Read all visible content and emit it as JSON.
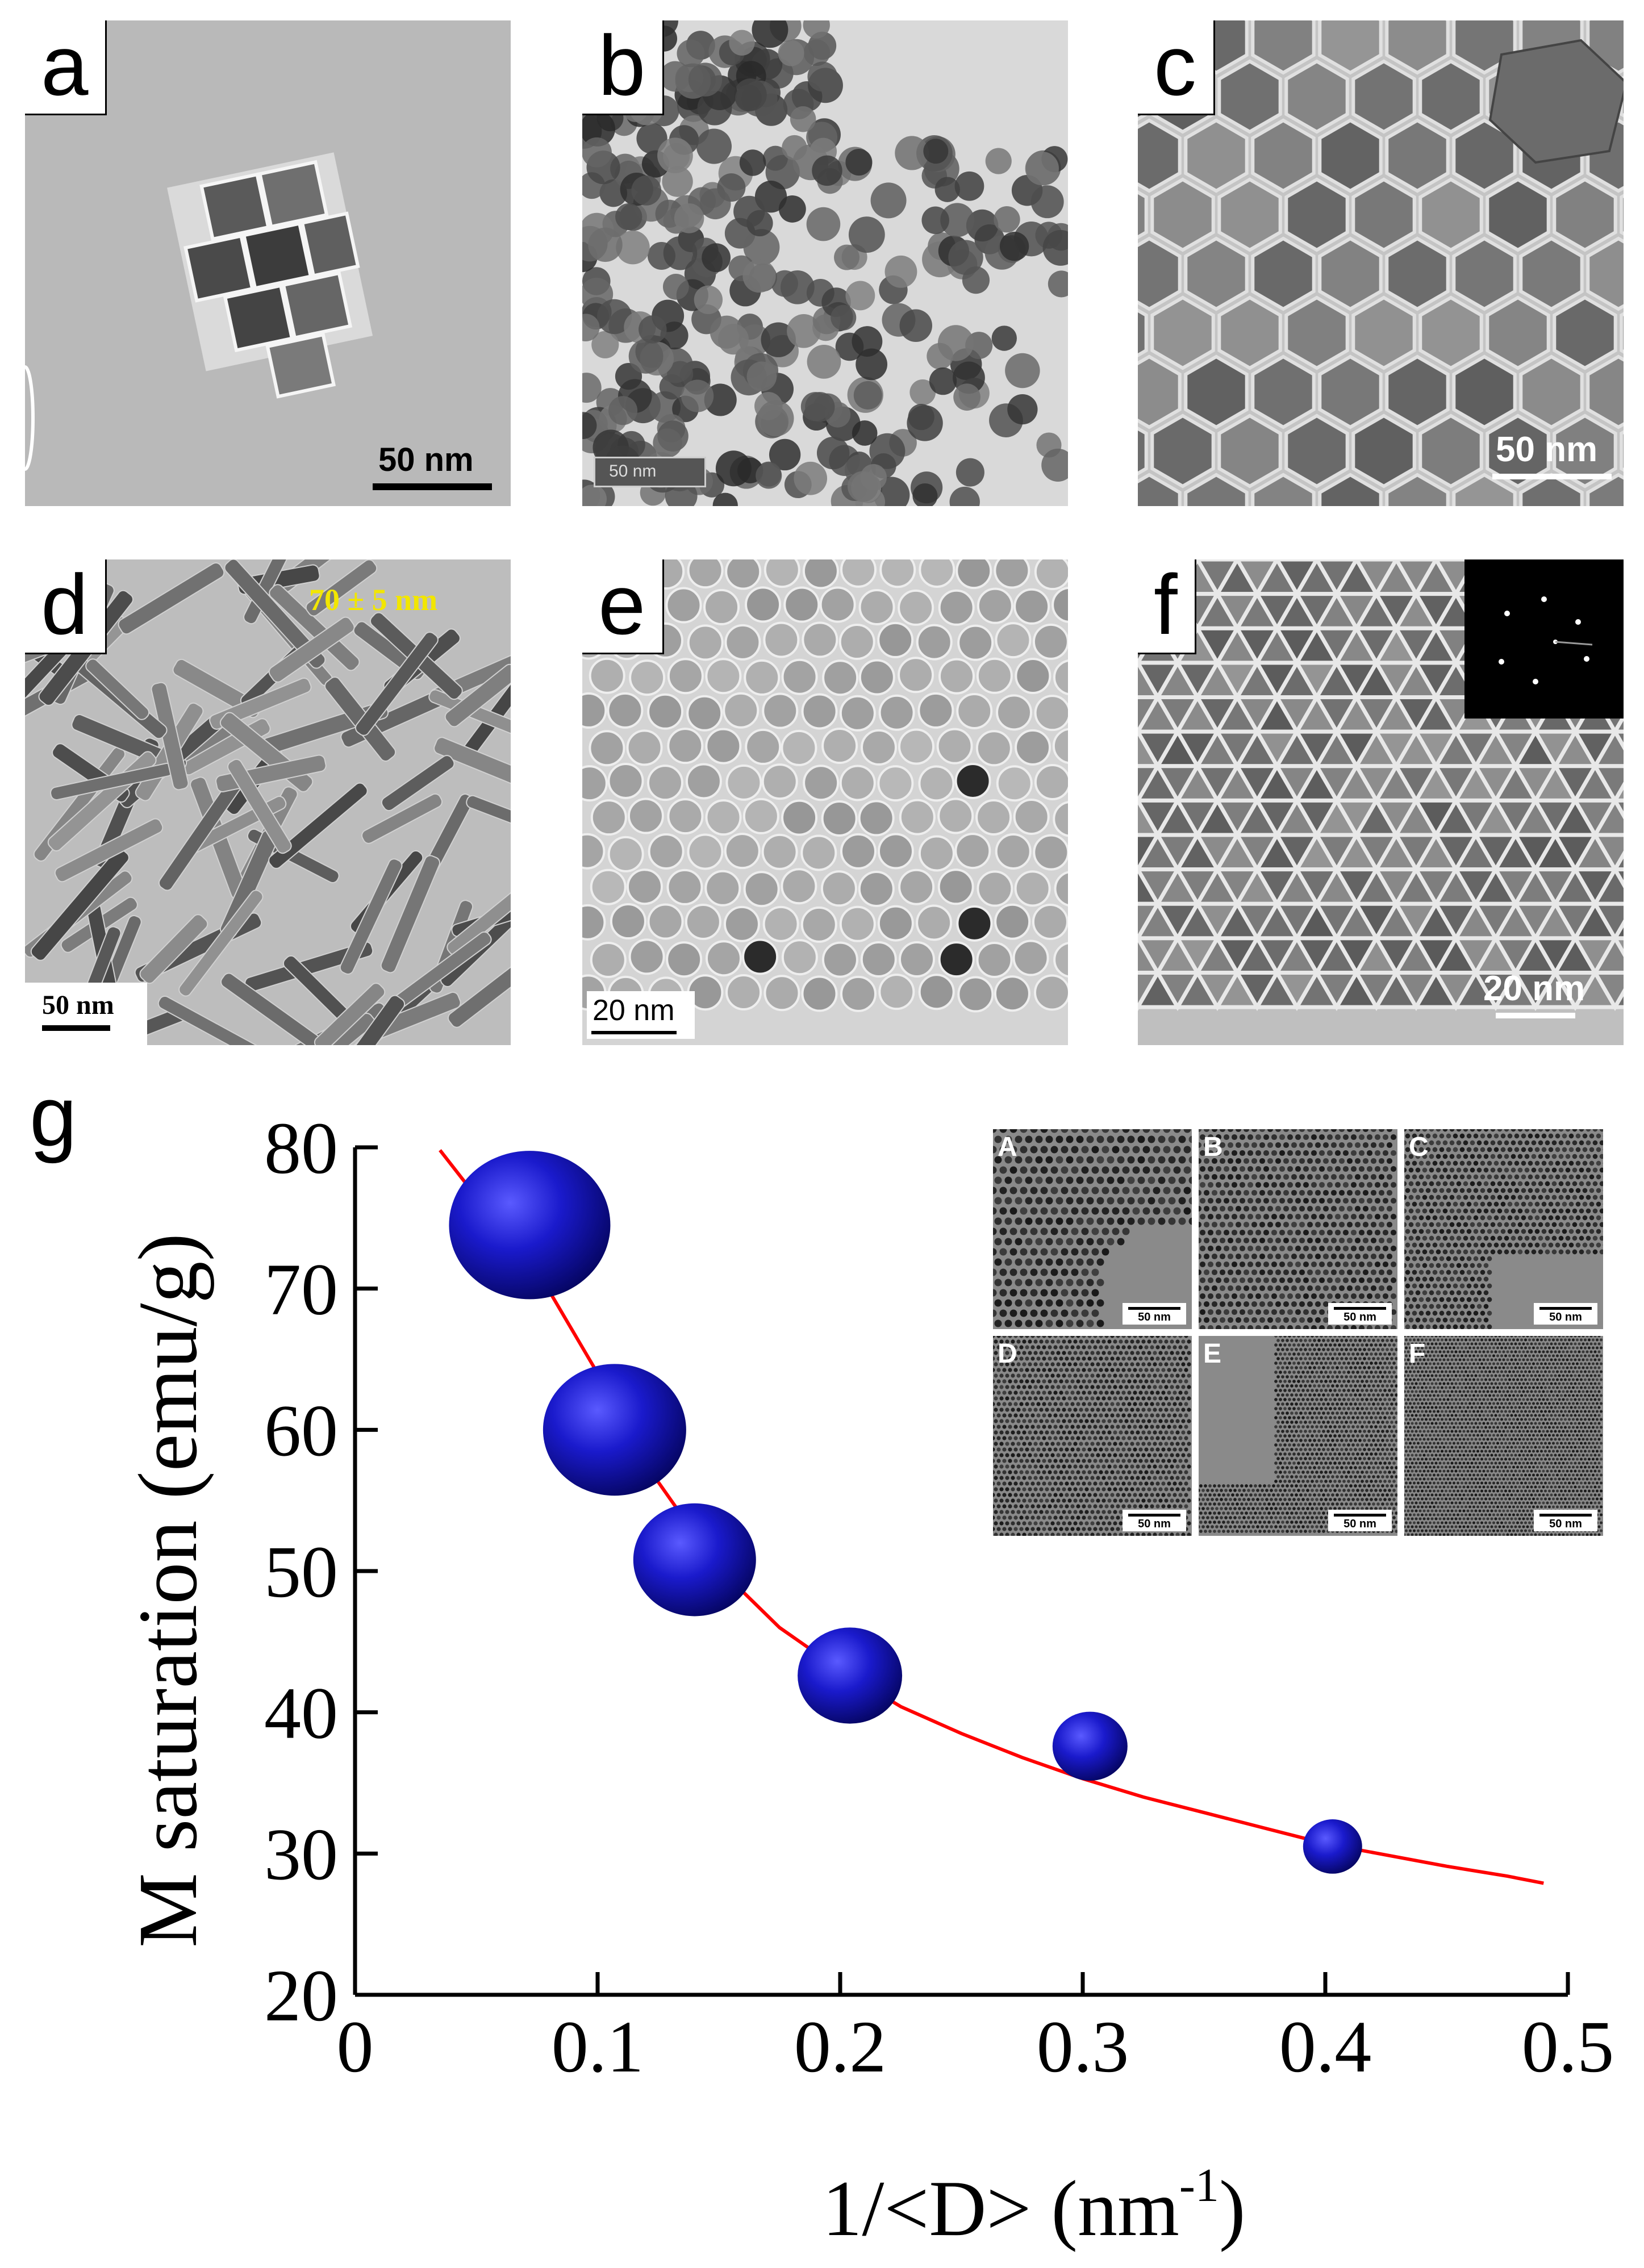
{
  "figure": {
    "panels": [
      {
        "id": "a",
        "letter": "a",
        "scale_bar": "50 nm",
        "description_icon": "tem-nanocubes"
      },
      {
        "id": "b",
        "letter": "b",
        "scale_bar": "50 nm",
        "description_icon": "tem-nanoflowers"
      },
      {
        "id": "c",
        "letter": "c",
        "scale_bar": "50 nm",
        "description_icon": "tem-hexagonal-plates"
      },
      {
        "id": "d",
        "letter": "d",
        "scale_bar": "50 nm",
        "annotation": "70 ± 5 nm",
        "description_icon": "tem-nanorods"
      },
      {
        "id": "e",
        "letter": "e",
        "scale_bar": "20 nm",
        "description_icon": "tem-nanospheres"
      },
      {
        "id": "f",
        "letter": "f",
        "scale_bar": "20 nm",
        "description_icon": "tem-nanotriangles"
      }
    ],
    "panel_g_letter": "g",
    "inset": {
      "labels": [
        "A",
        "B",
        "C",
        "D",
        "E",
        "F"
      ],
      "scale_bar": "50 nm"
    },
    "colors": {
      "marker": "#1a1acc",
      "fit_line": "#ff0000",
      "annotation_yellow": "#f2e600"
    }
  },
  "chart_data": {
    "type": "scatter",
    "xlabel": "1/<D> (nm",
    "xlabel_sup": "-1",
    "xlabel_close": ")",
    "ylabel": "M saturation (emu/g)",
    "xlim": [
      0,
      0.5
    ],
    "ylim": [
      20,
      80
    ],
    "xticks": [
      "0",
      "0.1",
      "0.2",
      "0.3",
      "0.4",
      "0.5"
    ],
    "yticks": [
      "20",
      "30",
      "40",
      "50",
      "60",
      "70",
      "80"
    ],
    "series": [
      {
        "marker": "sphere",
        "x": [
          0.072,
          0.107,
          0.14,
          0.204,
          0.303,
          0.403
        ],
        "y": [
          74.5,
          60,
          50.8,
          42.6,
          37.6,
          30.5
        ],
        "marker_size_rank": [
          6,
          5,
          4,
          3,
          2,
          1
        ]
      }
    ],
    "fit": {
      "type": "curve",
      "x": [
        0.035,
        0.05,
        0.075,
        0.1,
        0.125,
        0.15,
        0.175,
        0.2,
        0.225,
        0.25,
        0.275,
        0.3,
        0.325,
        0.35,
        0.375,
        0.4,
        0.425,
        0.45,
        0.475,
        0.49
      ],
      "y": [
        79.8,
        76.5,
        71.3,
        64.0,
        56.3,
        50.2,
        46.0,
        43.0,
        40.4,
        38.5,
        36.8,
        35.3,
        34.0,
        32.9,
        31.8,
        30.7,
        29.9,
        29.1,
        28.4,
        27.9
      ]
    },
    "grid": false
  }
}
